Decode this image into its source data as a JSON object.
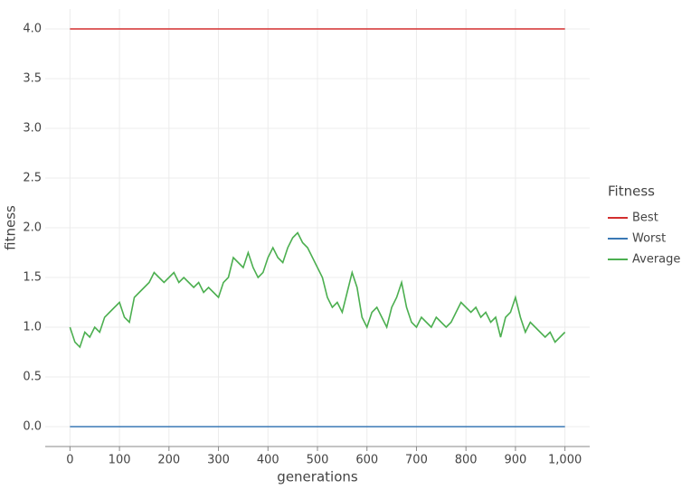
{
  "chart_data": {
    "type": "line",
    "xlabel": "generations",
    "ylabel": "fitness",
    "legend_title": "Fitness",
    "legend": "right",
    "grid": true,
    "xlim": [
      -50,
      1050
    ],
    "ylim": [
      -0.2,
      4.2
    ],
    "xticks": [
      0,
      100,
      200,
      300,
      400,
      500,
      600,
      700,
      800,
      900,
      {
        "value": 1000,
        "label": "1,000"
      }
    ],
    "yticks": [
      {
        "value": 0,
        "label": "0.0"
      },
      0.5,
      {
        "value": 1,
        "label": "1.0"
      },
      1.5,
      {
        "value": 2,
        "label": "2.0"
      },
      2.5,
      {
        "value": 3,
        "label": "3.0"
      },
      3.5,
      {
        "value": 4,
        "label": "4.0"
      }
    ],
    "x": [
      0,
      10,
      20,
      30,
      40,
      50,
      60,
      70,
      80,
      90,
      100,
      110,
      120,
      130,
      140,
      150,
      160,
      170,
      180,
      190,
      200,
      210,
      220,
      230,
      240,
      250,
      260,
      270,
      280,
      290,
      300,
      310,
      320,
      330,
      340,
      350,
      360,
      370,
      380,
      390,
      400,
      410,
      420,
      430,
      440,
      450,
      460,
      470,
      480,
      490,
      500,
      510,
      520,
      530,
      540,
      550,
      560,
      570,
      580,
      590,
      600,
      610,
      620,
      630,
      640,
      650,
      660,
      670,
      680,
      690,
      700,
      710,
      720,
      730,
      740,
      750,
      760,
      770,
      780,
      790,
      800,
      810,
      820,
      830,
      840,
      850,
      860,
      870,
      880,
      890,
      900,
      910,
      920,
      930,
      940,
      950,
      960,
      970,
      980,
      990,
      1000
    ],
    "series": [
      {
        "name": "Best",
        "color": "#d32f2f",
        "values": [
          4,
          4,
          4,
          4,
          4,
          4,
          4,
          4,
          4,
          4,
          4,
          4,
          4,
          4,
          4,
          4,
          4,
          4,
          4,
          4,
          4,
          4,
          4,
          4,
          4,
          4,
          4,
          4,
          4,
          4,
          4,
          4,
          4,
          4,
          4,
          4,
          4,
          4,
          4,
          4,
          4,
          4,
          4,
          4,
          4,
          4,
          4,
          4,
          4,
          4,
          4,
          4,
          4,
          4,
          4,
          4,
          4,
          4,
          4,
          4,
          4,
          4,
          4,
          4,
          4,
          4,
          4,
          4,
          4,
          4,
          4,
          4,
          4,
          4,
          4,
          4,
          4,
          4,
          4,
          4,
          4,
          4,
          4,
          4,
          4,
          4,
          4,
          4,
          4,
          4,
          4,
          4,
          4,
          4,
          4,
          4,
          4,
          4,
          4,
          4,
          4
        ]
      },
      {
        "name": "Worst",
        "color": "#3a78b5",
        "values": [
          0,
          0,
          0,
          0,
          0,
          0,
          0,
          0,
          0,
          0,
          0,
          0,
          0,
          0,
          0,
          0,
          0,
          0,
          0,
          0,
          0,
          0,
          0,
          0,
          0,
          0,
          0,
          0,
          0,
          0,
          0,
          0,
          0,
          0,
          0,
          0,
          0,
          0,
          0,
          0,
          0,
          0,
          0,
          0,
          0,
          0,
          0,
          0,
          0,
          0,
          0,
          0,
          0,
          0,
          0,
          0,
          0,
          0,
          0,
          0,
          0,
          0,
          0,
          0,
          0,
          0,
          0,
          0,
          0,
          0,
          0,
          0,
          0,
          0,
          0,
          0,
          0,
          0,
          0,
          0,
          0,
          0,
          0,
          0,
          0,
          0,
          0,
          0,
          0,
          0,
          0,
          0,
          0,
          0,
          0,
          0,
          0,
          0,
          0,
          0,
          0
        ]
      },
      {
        "name": "Average",
        "color": "#4caf50",
        "values": [
          1.0,
          0.85,
          0.8,
          0.95,
          0.9,
          1.0,
          0.95,
          1.1,
          1.15,
          1.2,
          1.25,
          1.1,
          1.05,
          1.3,
          1.35,
          1.4,
          1.45,
          1.55,
          1.5,
          1.45,
          1.5,
          1.55,
          1.45,
          1.5,
          1.45,
          1.4,
          1.45,
          1.35,
          1.4,
          1.35,
          1.3,
          1.45,
          1.5,
          1.7,
          1.65,
          1.6,
          1.75,
          1.6,
          1.5,
          1.55,
          1.7,
          1.8,
          1.7,
          1.65,
          1.8,
          1.9,
          1.95,
          1.85,
          1.8,
          1.7,
          1.6,
          1.5,
          1.3,
          1.2,
          1.25,
          1.15,
          1.35,
          1.55,
          1.4,
          1.1,
          1.0,
          1.15,
          1.2,
          1.1,
          1.0,
          1.2,
          1.3,
          1.45,
          1.2,
          1.05,
          1.0,
          1.1,
          1.05,
          1.0,
          1.1,
          1.05,
          1.0,
          1.05,
          1.15,
          1.25,
          1.2,
          1.15,
          1.2,
          1.1,
          1.15,
          1.05,
          1.1,
          0.9,
          1.1,
          1.15,
          1.3,
          1.1,
          0.95,
          1.05,
          1.0,
          0.95,
          0.9,
          0.95,
          0.85,
          0.9,
          0.95
        ]
      }
    ]
  }
}
